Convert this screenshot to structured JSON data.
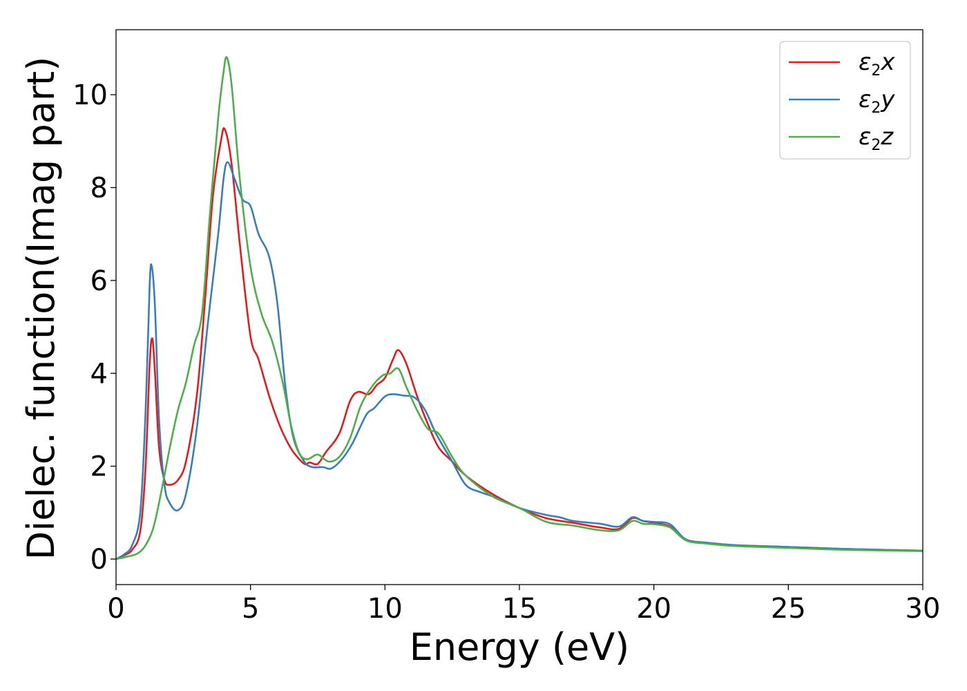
{
  "chart_data": {
    "type": "line",
    "title": "",
    "xlabel": "Energy (eV)",
    "ylabel": "Dielec. function(Imag part)",
    "xlim": [
      0,
      30
    ],
    "ylim": [
      -0.55,
      11.4
    ],
    "xticks": [
      0,
      5,
      10,
      15,
      20,
      25,
      30
    ],
    "yticks": [
      0,
      2,
      4,
      6,
      8,
      10
    ],
    "grid": false,
    "legend_position": "top-right",
    "series": [
      {
        "name": "ε2x",
        "legend_base": "ε",
        "legend_sub": "2",
        "legend_tail": "x",
        "color": "#e41a1c",
        "points": [
          [
            0,
            0
          ],
          [
            0.3,
            0.08
          ],
          [
            0.6,
            0.2
          ],
          [
            0.9,
            0.6
          ],
          [
            1.1,
            2.0
          ],
          [
            1.25,
            4.2
          ],
          [
            1.35,
            4.75
          ],
          [
            1.45,
            4.0
          ],
          [
            1.6,
            2.4
          ],
          [
            1.8,
            1.7
          ],
          [
            2.0,
            1.6
          ],
          [
            2.3,
            1.7
          ],
          [
            2.6,
            2.1
          ],
          [
            3.0,
            3.5
          ],
          [
            3.3,
            5.5
          ],
          [
            3.6,
            7.8
          ],
          [
            3.9,
            9.0
          ],
          [
            4.05,
            9.25
          ],
          [
            4.3,
            8.5
          ],
          [
            4.6,
            6.8
          ],
          [
            5.0,
            4.8
          ],
          [
            5.3,
            4.3
          ],
          [
            5.7,
            3.5
          ],
          [
            6.0,
            3.0
          ],
          [
            6.3,
            2.6
          ],
          [
            6.6,
            2.3
          ],
          [
            7.0,
            2.05
          ],
          [
            7.2,
            2.08
          ],
          [
            7.5,
            2.05
          ],
          [
            7.8,
            2.3
          ],
          [
            8.3,
            2.7
          ],
          [
            8.7,
            3.4
          ],
          [
            9.0,
            3.6
          ],
          [
            9.4,
            3.55
          ],
          [
            9.7,
            3.75
          ],
          [
            10.0,
            3.9
          ],
          [
            10.3,
            4.3
          ],
          [
            10.5,
            4.5
          ],
          [
            10.8,
            4.2
          ],
          [
            11.2,
            3.5
          ],
          [
            11.6,
            2.9
          ],
          [
            12.0,
            2.4
          ],
          [
            12.5,
            2.1
          ],
          [
            13.0,
            1.8
          ],
          [
            14.0,
            1.4
          ],
          [
            15.0,
            1.1
          ],
          [
            16.0,
            0.88
          ],
          [
            17.0,
            0.78
          ],
          [
            18.0,
            0.68
          ],
          [
            18.7,
            0.65
          ],
          [
            19.2,
            0.88
          ],
          [
            19.6,
            0.82
          ],
          [
            20.0,
            0.78
          ],
          [
            20.6,
            0.7
          ],
          [
            21.2,
            0.42
          ],
          [
            22.0,
            0.35
          ],
          [
            23.0,
            0.3
          ],
          [
            25.0,
            0.26
          ],
          [
            27.0,
            0.22
          ],
          [
            30.0,
            0.18
          ]
        ]
      },
      {
        "name": "ε2y",
        "legend_base": "ε",
        "legend_sub": "2",
        "legend_tail": "y",
        "color": "#377eb8",
        "points": [
          [
            0,
            0
          ],
          [
            0.3,
            0.1
          ],
          [
            0.6,
            0.3
          ],
          [
            0.9,
            1.0
          ],
          [
            1.1,
            3.2
          ],
          [
            1.25,
            5.9
          ],
          [
            1.33,
            6.3
          ],
          [
            1.45,
            5.4
          ],
          [
            1.6,
            3.0
          ],
          [
            1.8,
            1.6
          ],
          [
            2.0,
            1.2
          ],
          [
            2.3,
            1.05
          ],
          [
            2.6,
            1.4
          ],
          [
            3.0,
            2.8
          ],
          [
            3.4,
            5.0
          ],
          [
            3.8,
            7.0
          ],
          [
            4.0,
            8.2
          ],
          [
            4.15,
            8.55
          ],
          [
            4.4,
            8.2
          ],
          [
            4.7,
            7.75
          ],
          [
            5.0,
            7.6
          ],
          [
            5.3,
            7.0
          ],
          [
            5.7,
            6.5
          ],
          [
            6.0,
            5.5
          ],
          [
            6.3,
            3.7
          ],
          [
            6.6,
            2.6
          ],
          [
            7.0,
            2.1
          ],
          [
            7.3,
            1.98
          ],
          [
            7.7,
            1.98
          ],
          [
            8.0,
            1.95
          ],
          [
            8.4,
            2.15
          ],
          [
            8.8,
            2.5
          ],
          [
            9.3,
            3.1
          ],
          [
            9.6,
            3.25
          ],
          [
            10.0,
            3.5
          ],
          [
            10.3,
            3.55
          ],
          [
            10.7,
            3.52
          ],
          [
            11.1,
            3.48
          ],
          [
            11.5,
            3.2
          ],
          [
            11.9,
            2.7
          ],
          [
            12.5,
            2.1
          ],
          [
            13.0,
            1.6
          ],
          [
            13.5,
            1.45
          ],
          [
            14.0,
            1.35
          ],
          [
            15.0,
            1.1
          ],
          [
            16.0,
            0.95
          ],
          [
            16.5,
            0.9
          ],
          [
            17.0,
            0.82
          ],
          [
            18.0,
            0.76
          ],
          [
            18.7,
            0.7
          ],
          [
            19.2,
            0.9
          ],
          [
            19.6,
            0.82
          ],
          [
            20.0,
            0.8
          ],
          [
            20.6,
            0.75
          ],
          [
            21.2,
            0.42
          ],
          [
            22.0,
            0.35
          ],
          [
            23.0,
            0.3
          ],
          [
            25.0,
            0.26
          ],
          [
            27.0,
            0.22
          ],
          [
            30.0,
            0.18
          ]
        ]
      },
      {
        "name": "ε2z",
        "legend_base": "ε",
        "legend_sub": "2",
        "legend_tail": "z",
        "color": "#4daf4a",
        "points": [
          [
            0,
            0
          ],
          [
            0.4,
            0.05
          ],
          [
            0.8,
            0.12
          ],
          [
            1.1,
            0.3
          ],
          [
            1.4,
            0.7
          ],
          [
            1.7,
            1.5
          ],
          [
            2.0,
            2.4
          ],
          [
            2.3,
            3.2
          ],
          [
            2.6,
            3.8
          ],
          [
            2.9,
            4.6
          ],
          [
            3.2,
            5.3
          ],
          [
            3.5,
            7.5
          ],
          [
            3.8,
            9.5
          ],
          [
            4.0,
            10.5
          ],
          [
            4.12,
            10.8
          ],
          [
            4.3,
            10.2
          ],
          [
            4.6,
            8.2
          ],
          [
            5.0,
            6.3
          ],
          [
            5.4,
            5.3
          ],
          [
            5.8,
            4.7
          ],
          [
            6.2,
            3.8
          ],
          [
            6.5,
            2.9
          ],
          [
            6.8,
            2.3
          ],
          [
            7.1,
            2.15
          ],
          [
            7.5,
            2.25
          ],
          [
            7.9,
            2.1
          ],
          [
            8.3,
            2.2
          ],
          [
            8.7,
            2.6
          ],
          [
            9.1,
            3.3
          ],
          [
            9.5,
            3.7
          ],
          [
            9.9,
            3.95
          ],
          [
            10.2,
            4.0
          ],
          [
            10.5,
            4.1
          ],
          [
            10.8,
            3.7
          ],
          [
            11.2,
            3.2
          ],
          [
            11.6,
            2.8
          ],
          [
            12.0,
            2.7
          ],
          [
            12.5,
            2.2
          ],
          [
            13.0,
            1.8
          ],
          [
            14.0,
            1.35
          ],
          [
            15.0,
            1.1
          ],
          [
            16.0,
            0.8
          ],
          [
            17.0,
            0.72
          ],
          [
            18.0,
            0.62
          ],
          [
            18.7,
            0.62
          ],
          [
            19.2,
            0.82
          ],
          [
            19.6,
            0.76
          ],
          [
            20.0,
            0.75
          ],
          [
            20.6,
            0.68
          ],
          [
            21.2,
            0.4
          ],
          [
            22.0,
            0.33
          ],
          [
            23.0,
            0.28
          ],
          [
            25.0,
            0.24
          ],
          [
            27.0,
            0.2
          ],
          [
            30.0,
            0.17
          ]
        ]
      }
    ]
  }
}
